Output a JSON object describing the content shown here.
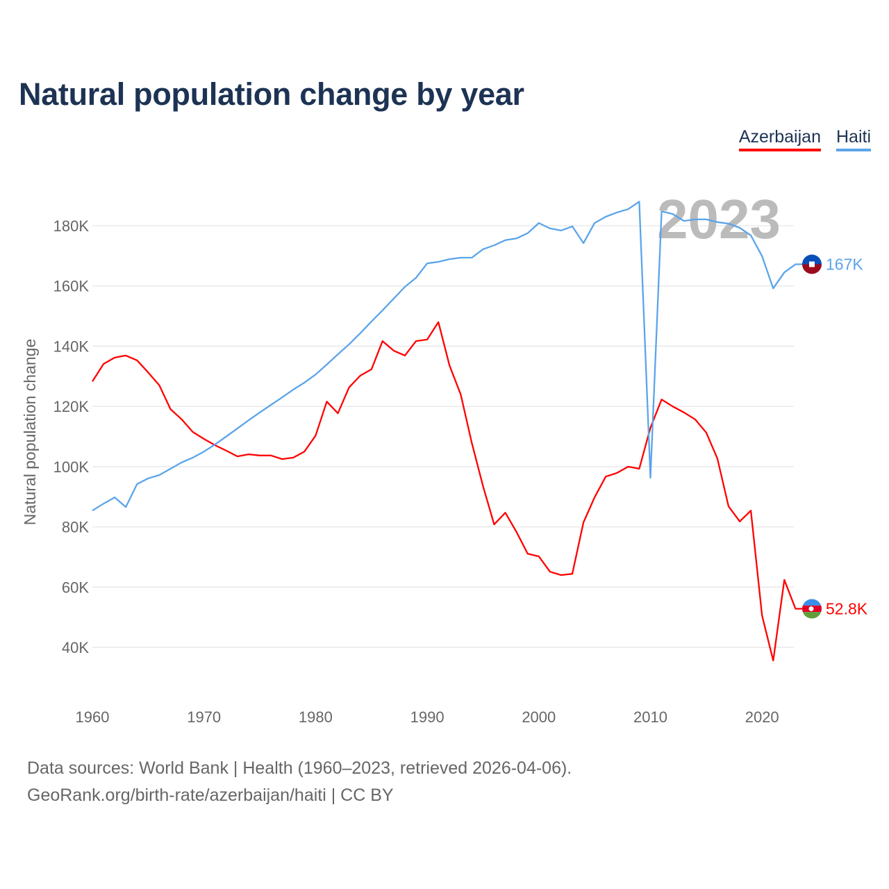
{
  "chart_data": {
    "type": "line",
    "title": "Natural population change by year",
    "xlabel": "",
    "ylabel": "Natural population change",
    "xlim": [
      1960,
      2023
    ],
    "ylim": [
      40000,
      180000
    ],
    "x_ticks": [
      "1960",
      "1970",
      "1980",
      "1990",
      "2000",
      "2010",
      "2020"
    ],
    "y_ticks": [
      "40K",
      "60K",
      "80K",
      "100K",
      "120K",
      "140K",
      "160K",
      "180K"
    ],
    "grid": true,
    "legend_position": "top-right",
    "watermark_year": "2023",
    "x": [
      1960,
      1961,
      1962,
      1963,
      1964,
      1965,
      1966,
      1967,
      1968,
      1969,
      1970,
      1971,
      1972,
      1973,
      1974,
      1975,
      1976,
      1977,
      1978,
      1979,
      1980,
      1981,
      1982,
      1983,
      1984,
      1985,
      1986,
      1987,
      1988,
      1989,
      1990,
      1991,
      1992,
      1993,
      1994,
      1995,
      1996,
      1997,
      1998,
      1999,
      2000,
      2001,
      2002,
      2003,
      2004,
      2005,
      2006,
      2007,
      2008,
      2009,
      2010,
      2011,
      2012,
      2013,
      2014,
      2015,
      2016,
      2017,
      2018,
      2019,
      2020,
      2021,
      2022,
      2023
    ],
    "series": [
      {
        "name": "Azerbaijan",
        "color": "#ff0000",
        "end_label": "52.8K",
        "values": [
          128300,
          134100,
          136200,
          136900,
          135300,
          131300,
          127000,
          119100,
          115700,
          111500,
          109200,
          107100,
          105300,
          103400,
          104100,
          103700,
          103700,
          102500,
          103000,
          105000,
          110300,
          121600,
          117700,
          126300,
          130200,
          132300,
          141700,
          138500,
          136900,
          141700,
          142200,
          148000,
          133600,
          124000,
          107800,
          93500,
          80800,
          84700,
          78300,
          71100,
          70200,
          65100,
          64000,
          64400,
          81500,
          89800,
          96700,
          97900,
          100000,
          99300,
          112900,
          122300,
          120000,
          118000,
          115700,
          111300,
          102700,
          86800,
          81800,
          85400,
          50600,
          35600,
          62400,
          52800
        ]
      },
      {
        "name": "Haiti",
        "color": "#5ba4ea",
        "end_label": "167K",
        "values": [
          85400,
          87700,
          89800,
          86600,
          94200,
          96100,
          97200,
          99300,
          101400,
          103000,
          105000,
          107400,
          110000,
          112700,
          115400,
          118000,
          120500,
          123000,
          125600,
          127900,
          130600,
          133900,
          137300,
          140600,
          144300,
          148200,
          151900,
          155800,
          159700,
          162700,
          167500,
          168000,
          168900,
          169400,
          169400,
          172200,
          173500,
          175200,
          175800,
          177500,
          180900,
          179100,
          178400,
          179800,
          174200,
          180900,
          183000,
          184400,
          185500,
          188000,
          96300,
          184800,
          183900,
          181600,
          182100,
          182100,
          181200,
          180700,
          179300,
          176800,
          169900,
          159200,
          164500,
          167200
        ]
      }
    ]
  },
  "footer": {
    "line1": "Data sources: World Bank | Health (1960–2023, retrieved 2026-04-06).",
    "line2": "GeoRank.org/birth-rate/azerbaijan/haiti | CC BY"
  }
}
